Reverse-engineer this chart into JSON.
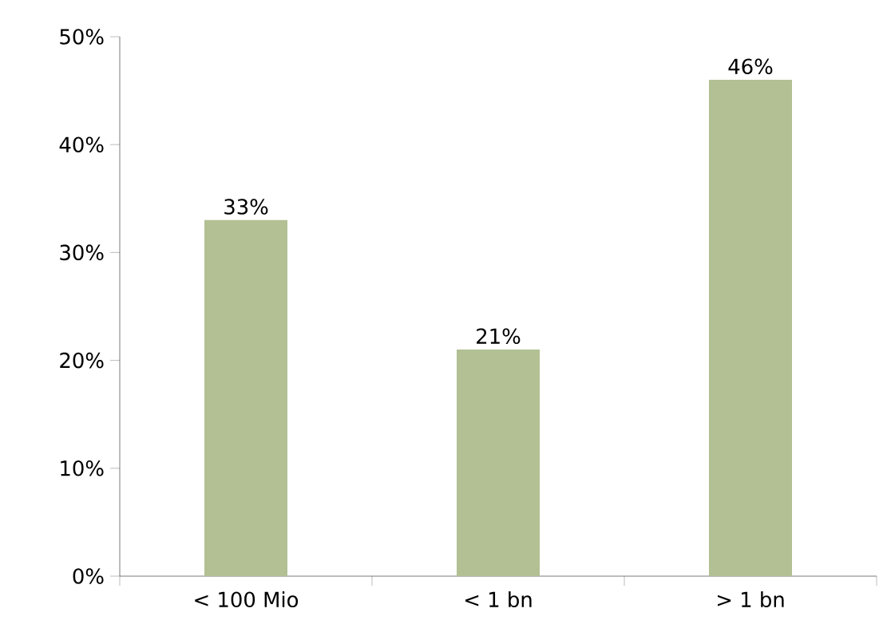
{
  "chart_data": {
    "type": "bar",
    "categories": [
      "< 100 Mio",
      "< 1 bn",
      "> 1 bn"
    ],
    "values": [
      33,
      21,
      46
    ],
    "value_labels": [
      "33%",
      "21%",
      "46%"
    ],
    "color": "#b2c093",
    "ylim": [
      0,
      50
    ],
    "yticks": [
      {
        "value": 0,
        "label": "0%"
      },
      {
        "value": 10,
        "label": "10%"
      },
      {
        "value": 20,
        "label": "20%"
      },
      {
        "value": 30,
        "label": "30%"
      },
      {
        "value": 40,
        "label": "40%"
      },
      {
        "value": 50,
        "label": "50%"
      }
    ]
  }
}
